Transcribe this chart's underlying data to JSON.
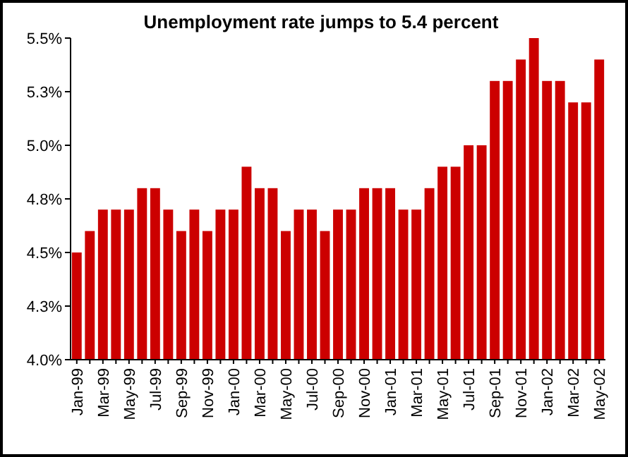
{
  "chart_data": {
    "type": "bar",
    "title": "Unemployment rate jumps to 5.4 percent",
    "categories": [
      "Jan-99",
      null,
      "Mar-99",
      null,
      "May-99",
      null,
      "Jul-99",
      null,
      "Sep-99",
      null,
      "Nov-99",
      null,
      "Jan-00",
      null,
      "Mar-00",
      null,
      "May-00",
      null,
      "Jul-00",
      null,
      "Sep-00",
      null,
      "Nov-00",
      null,
      "Jan-01",
      null,
      "Mar-01",
      null,
      "May-01",
      null,
      "Jul-01",
      null,
      "Sep-01",
      null,
      "Nov-01",
      null,
      "Jan-02",
      null,
      "Mar-02",
      null,
      "May-02"
    ],
    "values": [
      4.5,
      4.6,
      4.7,
      4.7,
      4.7,
      4.8,
      4.8,
      4.7,
      4.6,
      4.7,
      4.6,
      4.7,
      4.7,
      4.9,
      4.8,
      4.8,
      4.6,
      4.7,
      4.7,
      4.6,
      4.7,
      4.7,
      4.8,
      4.8,
      4.8,
      4.7,
      4.7,
      4.8,
      4.9,
      4.9,
      5.0,
      5.0,
      5.3,
      5.3,
      5.4,
      5.5,
      5.3,
      5.3,
      5.2,
      5.2,
      5.4
    ],
    "color": "#cc0000",
    "ylim": [
      4.0,
      5.5
    ],
    "yticks": [
      {
        "value": 4.0,
        "label": "4.0%"
      },
      {
        "value": 4.25,
        "label": "4.3%"
      },
      {
        "value": 4.5,
        "label": "4.5%"
      },
      {
        "value": 4.75,
        "label": "4.8%"
      },
      {
        "value": 5.0,
        "label": "5.0%"
      },
      {
        "value": 5.25,
        "label": "5.3%"
      },
      {
        "value": 5.5,
        "label": "5.5%"
      }
    ],
    "grid": false
  }
}
